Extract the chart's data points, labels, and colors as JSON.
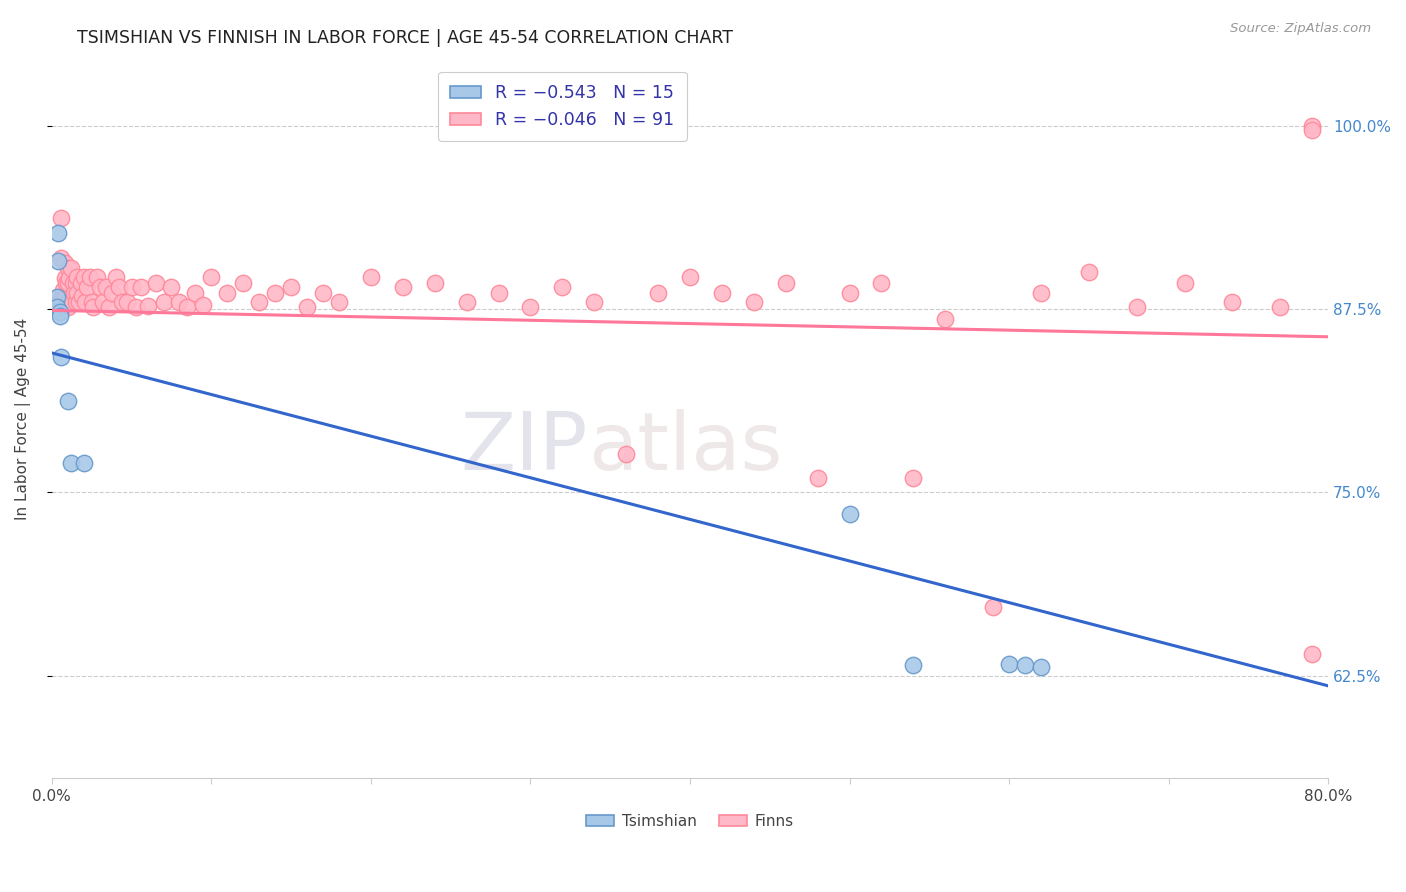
{
  "title": "TSIMSHIAN VS FINNISH IN LABOR FORCE | AGE 45-54 CORRELATION CHART",
  "source": "Source: ZipAtlas.com",
  "ylabel": "In Labor Force | Age 45-54",
  "xlim": [
    0.0,
    0.8
  ],
  "ylim": [
    0.555,
    1.045
  ],
  "x_ticks": [
    0.0,
    0.1,
    0.2,
    0.3,
    0.4,
    0.5,
    0.6,
    0.7,
    0.8
  ],
  "x_tick_labels": [
    "0.0%",
    "",
    "",
    "",
    "",
    "",
    "",
    "",
    "80.0%"
  ],
  "y_ticks": [
    0.625,
    0.75,
    0.875,
    1.0
  ],
  "y_tick_labels": [
    "62.5%",
    "75.0%",
    "87.5%",
    "100.0%"
  ],
  "legend_r_tsimshian": "R = −0.543",
  "legend_n_tsimshian": "N = 15",
  "legend_r_finns": "R = −0.046",
  "legend_n_finns": "N = 91",
  "tsimshian_color": "#A8C8E8",
  "finns_color": "#FFB8C8",
  "tsimshian_edge_color": "#6699CC",
  "finns_edge_color": "#FF8899",
  "blue_line_color": "#3366CC",
  "red_line_color": "#FF7799",
  "watermark_zip": "ZIP",
  "watermark_atlas": "atlas",
  "blue_line_x": [
    0.0,
    0.8
  ],
  "blue_line_y": [
    0.845,
    0.618
  ],
  "red_line_x": [
    0.0,
    0.8
  ],
  "red_line_y": [
    0.874,
    0.856
  ],
  "tsimshian_x": [
    0.003,
    0.003,
    0.004,
    0.004,
    0.005,
    0.005,
    0.006,
    0.01,
    0.012,
    0.02,
    0.5,
    0.54,
    0.6,
    0.61,
    0.62
  ],
  "tsimshian_y": [
    0.883,
    0.876,
    0.927,
    0.908,
    0.873,
    0.87,
    0.842,
    0.812,
    0.77,
    0.77,
    0.735,
    0.632,
    0.633,
    0.632,
    0.631
  ],
  "finns_x": [
    0.004,
    0.005,
    0.006,
    0.006,
    0.007,
    0.007,
    0.008,
    0.008,
    0.008,
    0.009,
    0.009,
    0.01,
    0.01,
    0.01,
    0.011,
    0.011,
    0.012,
    0.013,
    0.014,
    0.015,
    0.015,
    0.016,
    0.016,
    0.017,
    0.018,
    0.019,
    0.02,
    0.021,
    0.022,
    0.024,
    0.025,
    0.026,
    0.028,
    0.03,
    0.032,
    0.034,
    0.036,
    0.038,
    0.04,
    0.042,
    0.044,
    0.047,
    0.05,
    0.053,
    0.056,
    0.06,
    0.065,
    0.07,
    0.075,
    0.08,
    0.085,
    0.09,
    0.095,
    0.1,
    0.11,
    0.12,
    0.13,
    0.14,
    0.15,
    0.16,
    0.17,
    0.18,
    0.2,
    0.22,
    0.24,
    0.26,
    0.28,
    0.3,
    0.32,
    0.34,
    0.36,
    0.38,
    0.4,
    0.42,
    0.44,
    0.46,
    0.48,
    0.5,
    0.52,
    0.54,
    0.56,
    0.59,
    0.62,
    0.65,
    0.68,
    0.71,
    0.74,
    0.77,
    0.79,
    0.79,
    0.79
  ],
  "finns_y": [
    0.883,
    0.88,
    0.937,
    0.91,
    0.888,
    0.882,
    0.906,
    0.896,
    0.876,
    0.893,
    0.876,
    0.903,
    0.893,
    0.876,
    0.896,
    0.88,
    0.903,
    0.893,
    0.886,
    0.893,
    0.88,
    0.897,
    0.886,
    0.88,
    0.893,
    0.884,
    0.897,
    0.88,
    0.89,
    0.897,
    0.88,
    0.876,
    0.897,
    0.89,
    0.88,
    0.89,
    0.876,
    0.886,
    0.897,
    0.89,
    0.88,
    0.88,
    0.89,
    0.876,
    0.89,
    0.877,
    0.893,
    0.88,
    0.89,
    0.88,
    0.876,
    0.886,
    0.878,
    0.897,
    0.886,
    0.893,
    0.88,
    0.886,
    0.89,
    0.876,
    0.886,
    0.88,
    0.897,
    0.89,
    0.893,
    0.88,
    0.886,
    0.876,
    0.89,
    0.88,
    0.776,
    0.886,
    0.897,
    0.886,
    0.88,
    0.893,
    0.76,
    0.886,
    0.893,
    0.76,
    0.868,
    0.672,
    0.886,
    0.9,
    0.876,
    0.893,
    0.88,
    0.876,
    1.0,
    0.997,
    0.64
  ]
}
